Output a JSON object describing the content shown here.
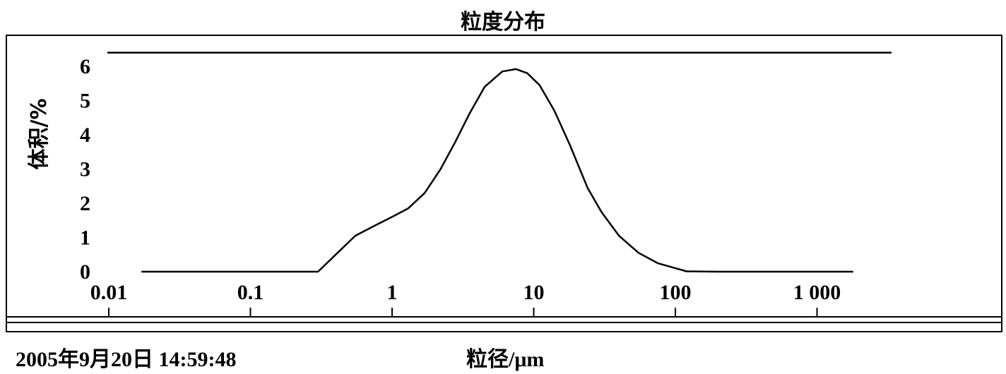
{
  "chart_data": {
    "type": "line",
    "title": "粒度分布",
    "xlabel": "粒径/μm",
    "ylabel": "体积/%",
    "x_scale": "log",
    "xlim": [
      0.01,
      2000
    ],
    "ylim": [
      0,
      6.5
    ],
    "x_ticks": [
      0.01,
      0.1,
      1,
      10,
      100,
      1000
    ],
    "x_tick_labels": [
      "0.01",
      "0.1",
      "1",
      "10",
      "100",
      "1 000"
    ],
    "y_ticks": [
      0,
      1,
      2,
      3,
      4,
      5,
      6
    ],
    "y_tick_labels": [
      "0",
      "1",
      "2",
      "3",
      "4",
      "5",
      "6"
    ],
    "grid": false,
    "reference_line_y": 6.4,
    "series": [
      {
        "x": [
          0.017,
          0.3,
          0.4,
          0.55,
          0.8,
          1.0,
          1.3,
          1.7,
          2.2,
          2.8,
          3.5,
          4.5,
          6.0,
          7.5,
          9.0,
          11,
          14,
          18,
          24,
          30,
          40,
          55,
          75,
          100,
          120,
          200,
          500,
          1000,
          1800
        ],
        "y": [
          0,
          0,
          0.5,
          1.05,
          1.4,
          1.6,
          1.85,
          2.3,
          3.0,
          3.8,
          4.6,
          5.4,
          5.85,
          5.92,
          5.8,
          5.45,
          4.7,
          3.7,
          2.45,
          1.75,
          1.05,
          0.55,
          0.25,
          0.1,
          0.01,
          0,
          0,
          0,
          0
        ]
      }
    ]
  },
  "footer": {
    "datetime": "2005年9月20日   14:59:48"
  }
}
